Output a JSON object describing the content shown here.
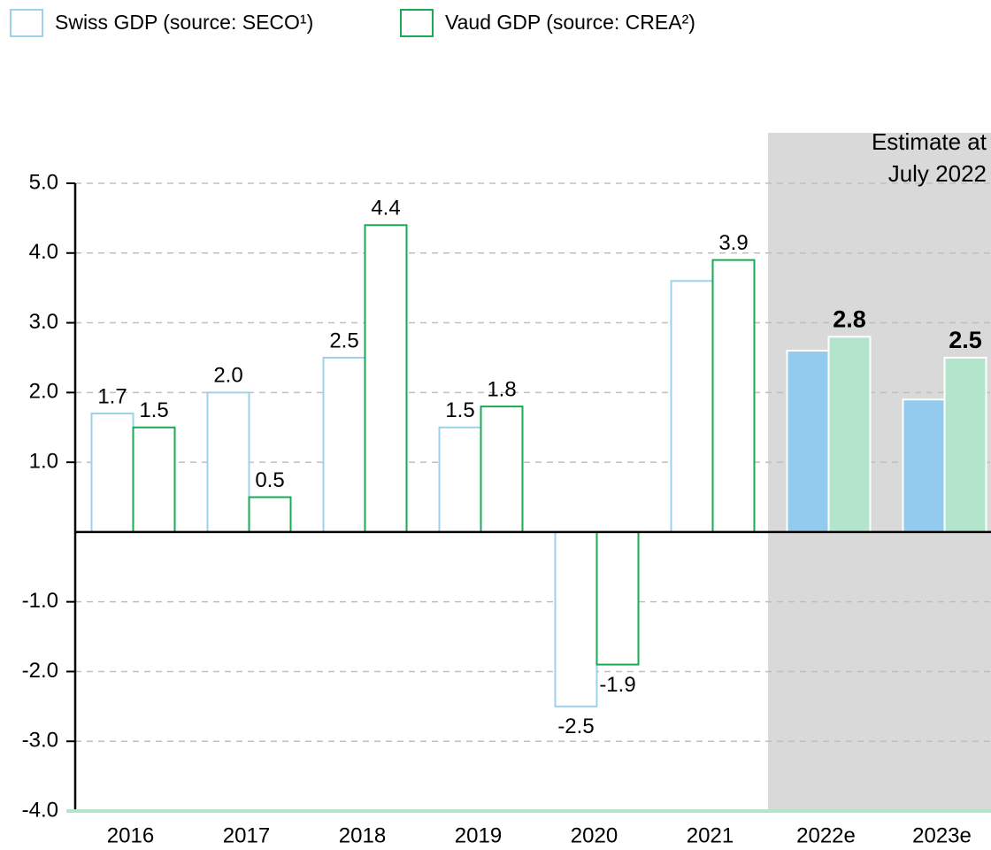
{
  "chart_data": {
    "type": "bar",
    "categories": [
      "2016",
      "2017",
      "2018",
      "2019",
      "2020",
      "2021",
      "2022e",
      "2023e"
    ],
    "series": [
      {
        "name": "Swiss GDP (source: SECO¹)",
        "color": "#9dd0ea",
        "estimate_color": "#92cbee",
        "values": [
          1.7,
          2.0,
          2.5,
          1.5,
          -2.5,
          3.6,
          2.6,
          1.9
        ],
        "value_labels": [
          "1.7",
          "2.0",
          "2.5",
          "1.5",
          "-2.5",
          null,
          null,
          null
        ]
      },
      {
        "name": "Vaud GDP (source: CREA²)",
        "color": "#1aaa55",
        "estimate_color": "#b3e5cc",
        "values": [
          1.5,
          0.5,
          4.4,
          1.8,
          -1.9,
          3.9,
          2.8,
          2.5
        ],
        "value_labels": [
          "1.5",
          "0.5",
          "4.4",
          "1.8",
          "-1.9",
          "3.9",
          "2.8",
          "2.5"
        ]
      }
    ],
    "ylim": [
      -4,
      5
    ],
    "yticks": [
      {
        "value": 5,
        "label": "5.0"
      },
      {
        "value": 4,
        "label": "4.0"
      },
      {
        "value": 3,
        "label": "3.0"
      },
      {
        "value": 2,
        "label": "2.0"
      },
      {
        "value": 1,
        "label": "1.0"
      },
      {
        "value": -1,
        "label": "-1.0"
      },
      {
        "value": -2,
        "label": "-2.0"
      },
      {
        "value": -3,
        "label": "-3.0"
      },
      {
        "value": -4,
        "label": "-4.0"
      }
    ],
    "grid": true,
    "estimate_from_index": 6,
    "annotation": [
      "Estimate at",
      "July 2022"
    ]
  }
}
